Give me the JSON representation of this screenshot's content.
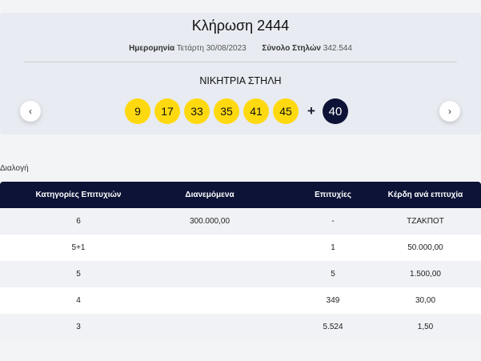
{
  "draw": {
    "title": "Κλήρωση 2444",
    "date_label": "Ημερομηνία",
    "date_value": "Τετάρτη 30/08/2023",
    "columns_label": "Σύνολο Στηλών",
    "columns_value": "342.544",
    "winning_label": "ΝΙΚΗΤΡΙΑ ΣΤΗΛΗ",
    "numbers": [
      "9",
      "17",
      "33",
      "35",
      "41",
      "45"
    ],
    "plus": "+",
    "joker": "40",
    "prev_icon": "‹",
    "next_icon": "›"
  },
  "section_label": "Διαλογή",
  "table": {
    "headers": [
      "Κατηγορίες Επιτυχιών",
      "Διανεμόμενα",
      "Επιτυχίες",
      "Κέρδη ανά επιτυχία"
    ],
    "rows": [
      [
        "6",
        "300.000,00",
        "-",
        "ΤΖΑΚΠΟΤ"
      ],
      [
        "5+1",
        "",
        "1",
        "50.000,00"
      ],
      [
        "5",
        "",
        "5",
        "1.500,00"
      ],
      [
        "4",
        "",
        "349",
        "30,00"
      ],
      [
        "3",
        "",
        "5.524",
        "1,50"
      ]
    ]
  },
  "colors": {
    "ball": "#ffd90f",
    "joker": "#0c1336",
    "header": "#0c1336",
    "card": "#e8ebf1"
  }
}
